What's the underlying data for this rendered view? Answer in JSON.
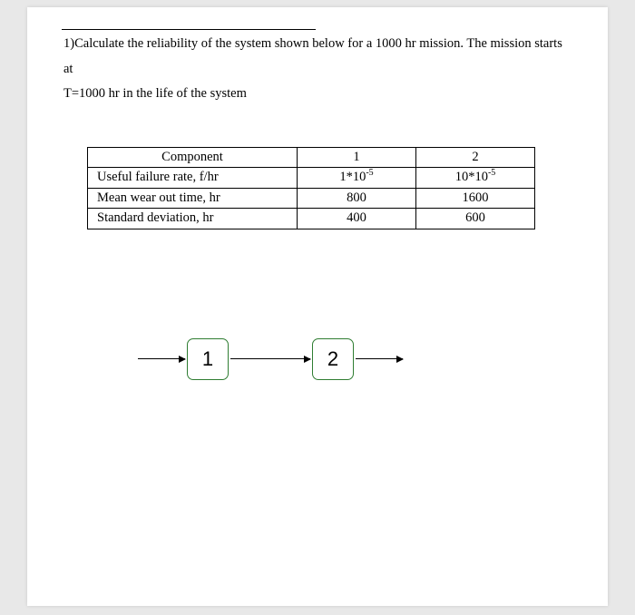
{
  "question": {
    "number": "1)",
    "line1": "Calculate the reliability of the system shown below for a 1000 hr mission. The mission starts at",
    "line2": "T=1000 hr in the life of the system"
  },
  "table": {
    "header": {
      "c0": "Component",
      "c1": "1",
      "c2": "2"
    },
    "rows": [
      {
        "label": "Useful failure rate, f/hr",
        "v1_base": "1*10",
        "v1_exp": "-5",
        "v2_base": "10*10",
        "v2_exp": "-5"
      },
      {
        "label": "Mean wear out time, hr",
        "v1": "800",
        "v2": "1600"
      },
      {
        "label": "Standard deviation, hr",
        "v1": "400",
        "v2": "600"
      }
    ]
  },
  "diagram": {
    "type": "series-block-diagram",
    "node_border_color": "#2f7d32",
    "nodes": [
      {
        "label": "1"
      },
      {
        "label": "2"
      }
    ]
  }
}
